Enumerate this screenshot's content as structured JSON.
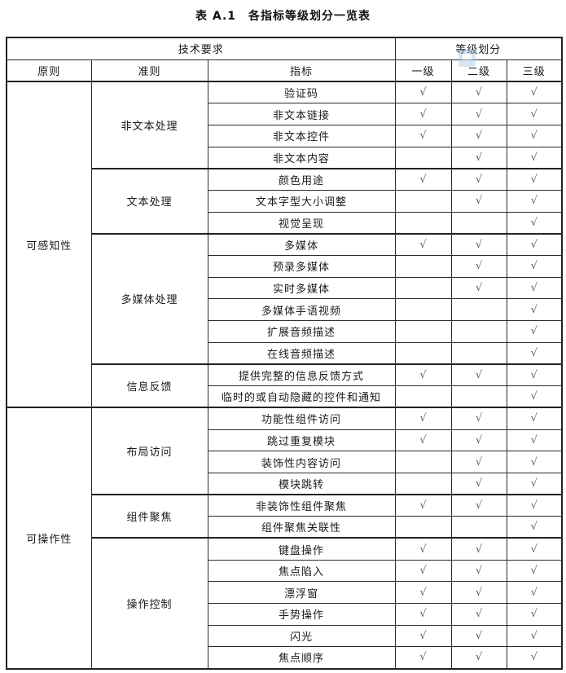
{
  "title": "表 A.1　各指标等级划分一览表",
  "table": {
    "header": {
      "tech_requirements": "技术要求",
      "level_division": "等级划分",
      "principle": "原则",
      "criterion": "准则",
      "indicator": "指标",
      "levels": {
        "l1": "一级",
        "l2": "二级",
        "l3": "三级"
      }
    },
    "check_glyph": "√",
    "principles": [
      {
        "name": "可感知性",
        "criteria": [
          {
            "name": "非文本处理",
            "indicators": [
              {
                "label": "验证码",
                "levels": [
                  true,
                  true,
                  true
                ]
              },
              {
                "label": "非文本链接",
                "levels": [
                  true,
                  true,
                  true
                ]
              },
              {
                "label": "非文本控件",
                "levels": [
                  true,
                  true,
                  true
                ]
              },
              {
                "label": "非文本内容",
                "levels": [
                  false,
                  true,
                  true
                ]
              }
            ]
          },
          {
            "name": "文本处理",
            "indicators": [
              {
                "label": "颜色用途",
                "levels": [
                  true,
                  true,
                  true
                ]
              },
              {
                "label": "文本字型大小调整",
                "levels": [
                  false,
                  true,
                  true
                ]
              },
              {
                "label": "视觉呈现",
                "levels": [
                  false,
                  false,
                  true
                ]
              }
            ]
          },
          {
            "name": "多媒体处理",
            "indicators": [
              {
                "label": "多媒体",
                "levels": [
                  true,
                  true,
                  true
                ]
              },
              {
                "label": "预录多媒体",
                "levels": [
                  false,
                  true,
                  true
                ]
              },
              {
                "label": "实时多媒体",
                "levels": [
                  false,
                  true,
                  true
                ]
              },
              {
                "label": "多媒体手语视频",
                "levels": [
                  false,
                  false,
                  true
                ]
              },
              {
                "label": "扩展音频描述",
                "levels": [
                  false,
                  false,
                  true
                ]
              },
              {
                "label": "在线音频描述",
                "levels": [
                  false,
                  false,
                  true
                ]
              }
            ]
          },
          {
            "name": "信息反馈",
            "indicators": [
              {
                "label": "提供完整的信息反馈方式",
                "levels": [
                  true,
                  true,
                  true
                ]
              },
              {
                "label": "临时的或自动隐藏的控件和通知",
                "levels": [
                  false,
                  false,
                  true
                ]
              }
            ]
          }
        ]
      },
      {
        "name": "可操作性",
        "criteria": [
          {
            "name": "布局访问",
            "indicators": [
              {
                "label": "功能性组件访问",
                "levels": [
                  true,
                  true,
                  true
                ]
              },
              {
                "label": "跳过重复模块",
                "levels": [
                  true,
                  true,
                  true
                ]
              },
              {
                "label": "装饰性内容访问",
                "levels": [
                  false,
                  true,
                  true
                ]
              },
              {
                "label": "模块跳转",
                "levels": [
                  false,
                  true,
                  true
                ]
              }
            ]
          },
          {
            "name": "组件聚焦",
            "indicators": [
              {
                "label": "非装饰性组件聚焦",
                "levels": [
                  true,
                  true,
                  true
                ]
              },
              {
                "label": "组件聚焦关联性",
                "levels": [
                  false,
                  false,
                  true
                ]
              }
            ]
          },
          {
            "name": "操作控制",
            "indicators": [
              {
                "label": "键盘操作",
                "levels": [
                  true,
                  true,
                  true
                ]
              },
              {
                "label": "焦点陷入",
                "levels": [
                  true,
                  true,
                  true
                ]
              },
              {
                "label": "漂浮窗",
                "levels": [
                  true,
                  true,
                  true
                ]
              },
              {
                "label": "手势操作",
                "levels": [
                  true,
                  true,
                  true
                ]
              },
              {
                "label": "闪光",
                "levels": [
                  true,
                  true,
                  true
                ]
              },
              {
                "label": "焦点顺序",
                "levels": [
                  true,
                  true,
                  true
                ]
              }
            ]
          }
        ]
      }
    ]
  },
  "colors": {
    "border": "#222222",
    "text": "#1a1a1a",
    "check": "#5f5f5f",
    "watermark": "#a8c8ea"
  }
}
